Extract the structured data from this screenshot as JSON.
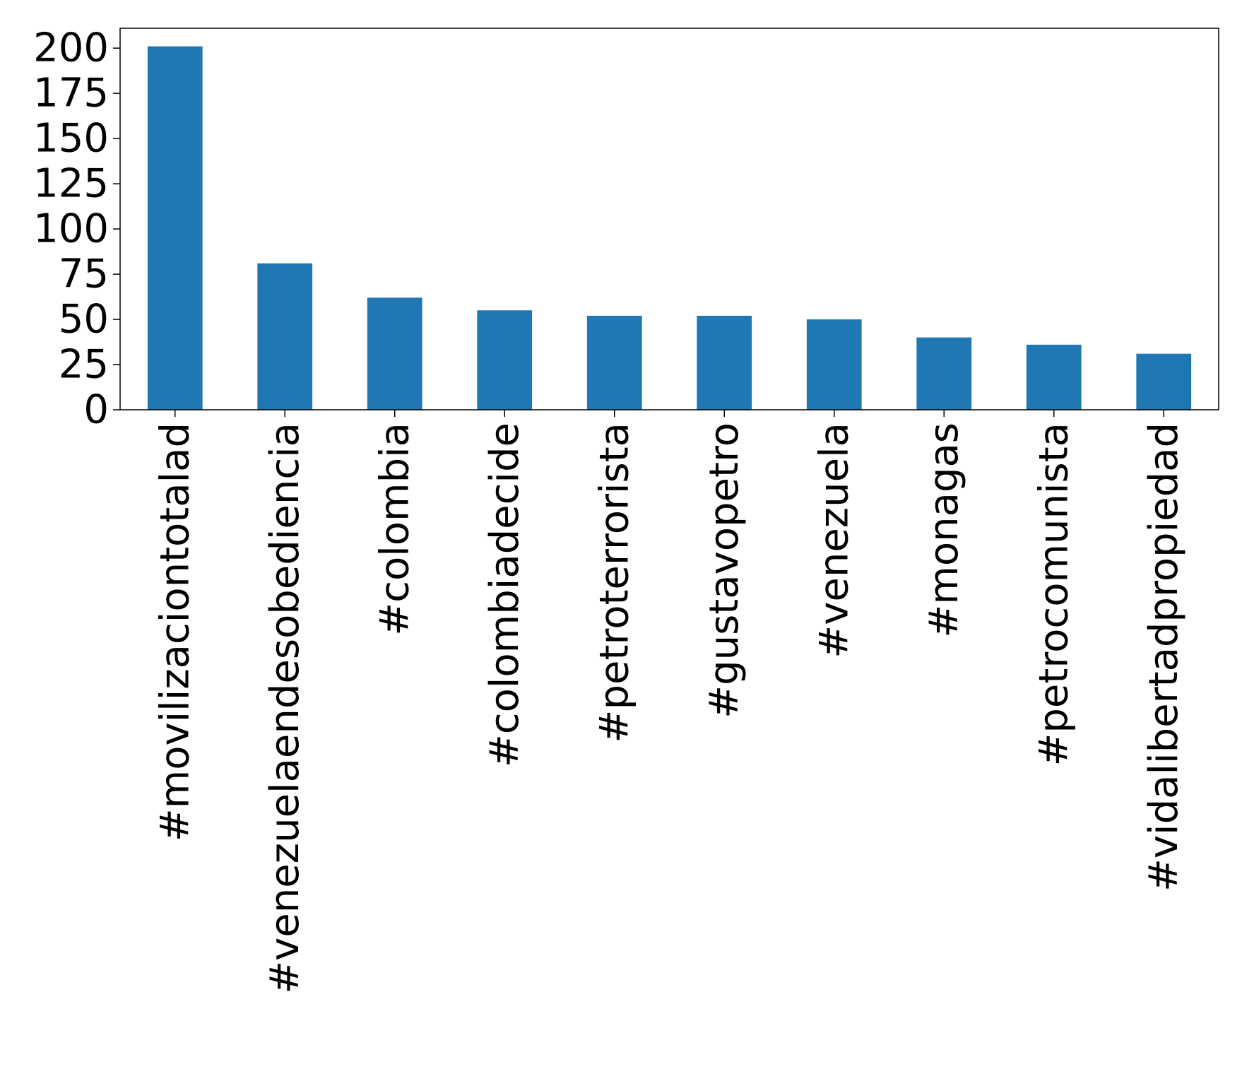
{
  "chart_data": {
    "type": "bar",
    "title": "",
    "xlabel": "",
    "ylabel": "",
    "categories": [
      "#movilizaciontotalad",
      "#venezuelaendesobediencia",
      "#colombia",
      "#colombiadecide",
      "#petroterrorista",
      "#gustavopetro",
      "#venezuela",
      "#monagas",
      "#petrocomunista",
      "#vidalibertadpropiedad"
    ],
    "values": [
      201,
      81,
      62,
      55,
      52,
      52,
      50,
      40,
      36,
      31
    ],
    "ylim": [
      0,
      211
    ],
    "yticks": [
      0,
      25,
      50,
      75,
      100,
      125,
      150,
      175,
      200
    ],
    "grid": false,
    "legend": "none",
    "bar_color": "#1f77b4"
  }
}
